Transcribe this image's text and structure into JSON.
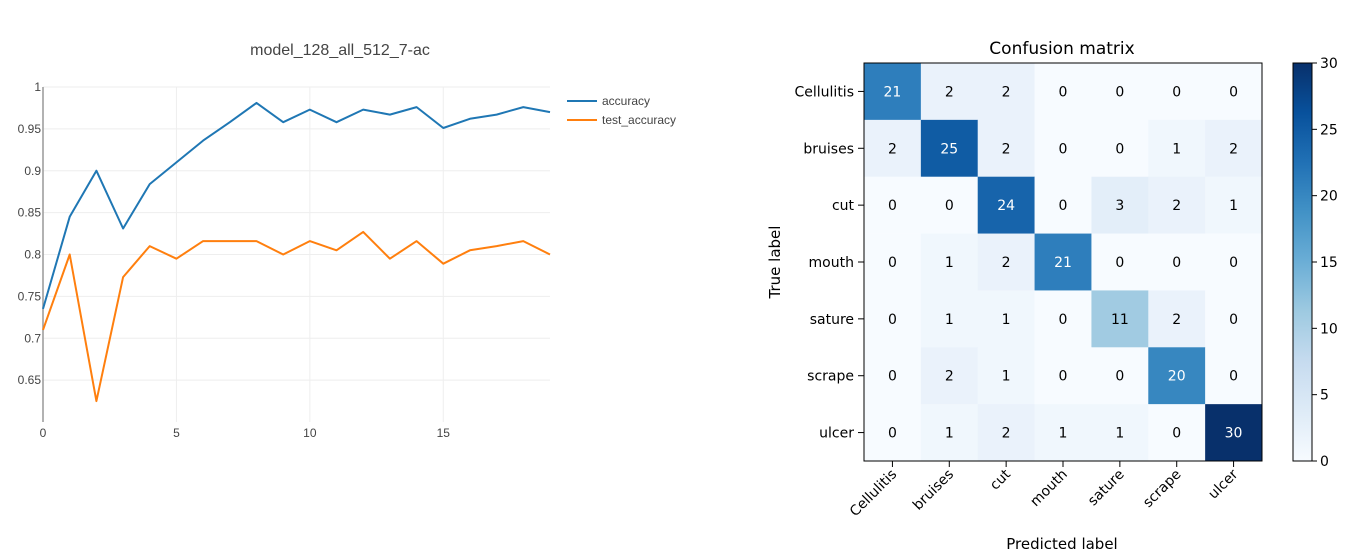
{
  "colors": {
    "accuracy": "#1f77b4",
    "test_accuracy": "#ff7f0e",
    "grid": "#eeeeee",
    "axis": "#999999",
    "cmap_low": "#f7fbff",
    "cmap_high": "#08306b"
  },
  "chart_data": [
    {
      "type": "line",
      "title": "model_128_all_512_7-ac",
      "xlabel": "",
      "ylabel": "",
      "xlim": [
        0,
        19
      ],
      "ylim": [
        0.6,
        1.0
      ],
      "x": [
        0,
        1,
        2,
        3,
        4,
        5,
        6,
        7,
        8,
        9,
        10,
        11,
        12,
        13,
        14,
        15,
        16,
        17,
        18,
        19
      ],
      "x_ticks": [
        "0",
        "5",
        "10",
        "15"
      ],
      "x_tick_values": [
        0,
        5,
        10,
        15
      ],
      "y_ticks": [
        "1",
        "0.95",
        "0.9",
        "0.85",
        "0.8",
        "0.75",
        "0.7",
        "0.65"
      ],
      "y_tick_values": [
        1.0,
        0.95,
        0.9,
        0.85,
        0.8,
        0.75,
        0.7,
        0.65
      ],
      "grid": true,
      "legend_position": "top-right-outside",
      "series": [
        {
          "name": "accuracy",
          "values": [
            0.735,
            0.845,
            0.9,
            0.831,
            0.884,
            0.91,
            0.936,
            0.958,
            0.981,
            0.958,
            0.973,
            0.958,
            0.973,
            0.967,
            0.976,
            0.951,
            0.962,
            0.967,
            0.976,
            0.97
          ]
        },
        {
          "name": "test_accuracy",
          "values": [
            0.71,
            0.8,
            0.625,
            0.773,
            0.81,
            0.795,
            0.816,
            0.816,
            0.816,
            0.8,
            0.816,
            0.805,
            0.827,
            0.795,
            0.816,
            0.789,
            0.805,
            0.81,
            0.816,
            0.8
          ]
        }
      ]
    },
    {
      "type": "heatmap",
      "title": "Confusion matrix",
      "xlabel": "Predicted label",
      "ylabel": "True label",
      "categories": [
        "Cellulitis",
        "bruises",
        "cut",
        "mouth",
        "sature",
        "scrape",
        "ulcer"
      ],
      "matrix": [
        [
          21,
          2,
          2,
          0,
          0,
          0,
          0
        ],
        [
          2,
          25,
          2,
          0,
          0,
          1,
          2
        ],
        [
          0,
          0,
          24,
          0,
          3,
          2,
          1
        ],
        [
          0,
          1,
          2,
          21,
          0,
          0,
          0
        ],
        [
          0,
          1,
          1,
          0,
          11,
          2,
          0
        ],
        [
          0,
          2,
          1,
          0,
          0,
          20,
          0
        ],
        [
          0,
          1,
          2,
          1,
          1,
          0,
          30
        ]
      ],
      "colorbar": {
        "min": 0,
        "max": 30,
        "ticks": [
          0,
          5,
          10,
          15,
          20,
          25,
          30
        ],
        "colormap": "Blues"
      }
    }
  ]
}
